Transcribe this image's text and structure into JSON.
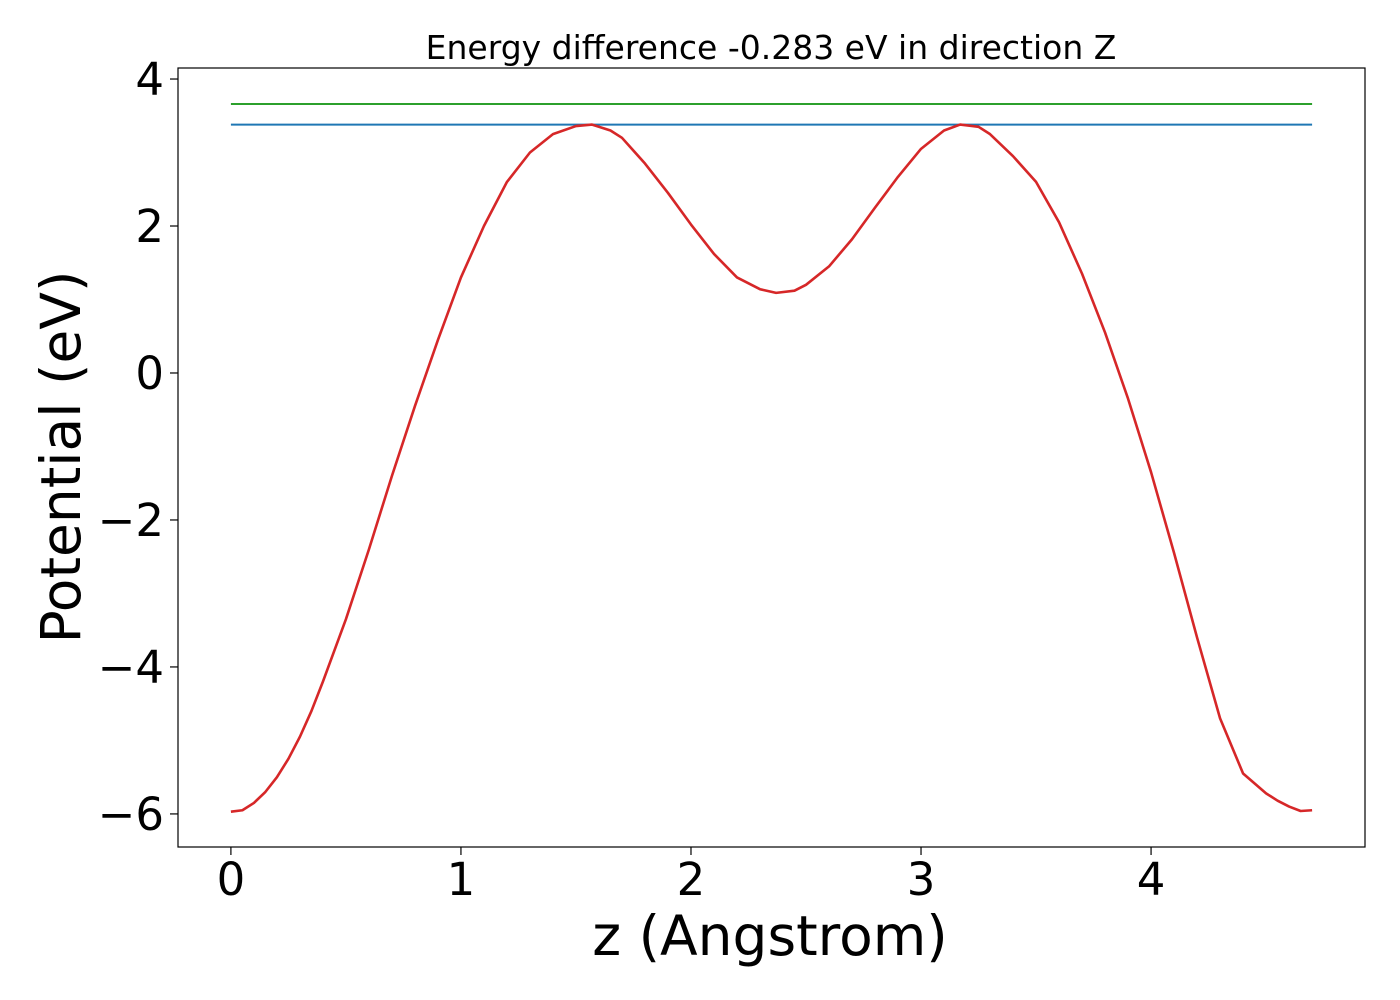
{
  "chart_data": {
    "type": "line",
    "title": "Energy difference -0.283 eV in direction Z",
    "xlabel": "z (Angstrom)",
    "ylabel": "Potential (eV)",
    "xlim": [
      -0.23,
      4.93
    ],
    "ylim": [
      -6.45,
      4.15
    ],
    "xticks": [
      0,
      1,
      2,
      3,
      4
    ],
    "xtick_labels": [
      "0",
      "1",
      "2",
      "3",
      "4"
    ],
    "yticks": [
      4,
      2,
      0,
      -2,
      -4,
      -6
    ],
    "ytick_labels": [
      "4",
      "2",
      "0",
      "−2",
      "−4",
      "−6"
    ],
    "grid": false,
    "series": [
      {
        "color": "#2ca02c",
        "x": [
          0,
          4.7
        ],
        "y": [
          3.66,
          3.66
        ]
      },
      {
        "color": "#1f77b4",
        "x": [
          0,
          4.7
        ],
        "y": [
          3.38,
          3.38
        ]
      },
      {
        "color": "#d62728",
        "x": [
          0.0,
          0.05,
          0.1,
          0.15,
          0.2,
          0.25,
          0.3,
          0.35,
          0.4,
          0.5,
          0.6,
          0.7,
          0.8,
          0.9,
          1.0,
          1.1,
          1.2,
          1.3,
          1.4,
          1.5,
          1.57,
          1.65,
          1.7,
          1.8,
          1.9,
          2.0,
          2.1,
          2.2,
          2.3,
          2.37,
          2.45,
          2.5,
          2.6,
          2.7,
          2.8,
          2.9,
          3.0,
          3.1,
          3.17,
          3.25,
          3.3,
          3.4,
          3.5,
          3.6,
          3.7,
          3.8,
          3.9,
          4.0,
          4.1,
          4.2,
          4.3,
          4.4,
          4.5,
          4.55,
          4.6,
          4.65,
          4.7
        ],
        "y": [
          -5.97,
          -5.95,
          -5.85,
          -5.7,
          -5.5,
          -5.25,
          -4.95,
          -4.6,
          -4.2,
          -3.35,
          -2.4,
          -1.4,
          -0.45,
          0.45,
          1.3,
          2.0,
          2.6,
          3.0,
          3.25,
          3.36,
          3.38,
          3.3,
          3.2,
          2.85,
          2.45,
          2.02,
          1.62,
          1.3,
          1.14,
          1.09,
          1.12,
          1.2,
          1.45,
          1.82,
          2.25,
          2.67,
          3.05,
          3.3,
          3.38,
          3.35,
          3.25,
          2.95,
          2.6,
          2.05,
          1.35,
          0.55,
          -0.35,
          -1.35,
          -2.45,
          -3.6,
          -4.7,
          -5.45,
          -5.72,
          -5.82,
          -5.9,
          -5.96,
          -5.95
        ]
      }
    ]
  }
}
